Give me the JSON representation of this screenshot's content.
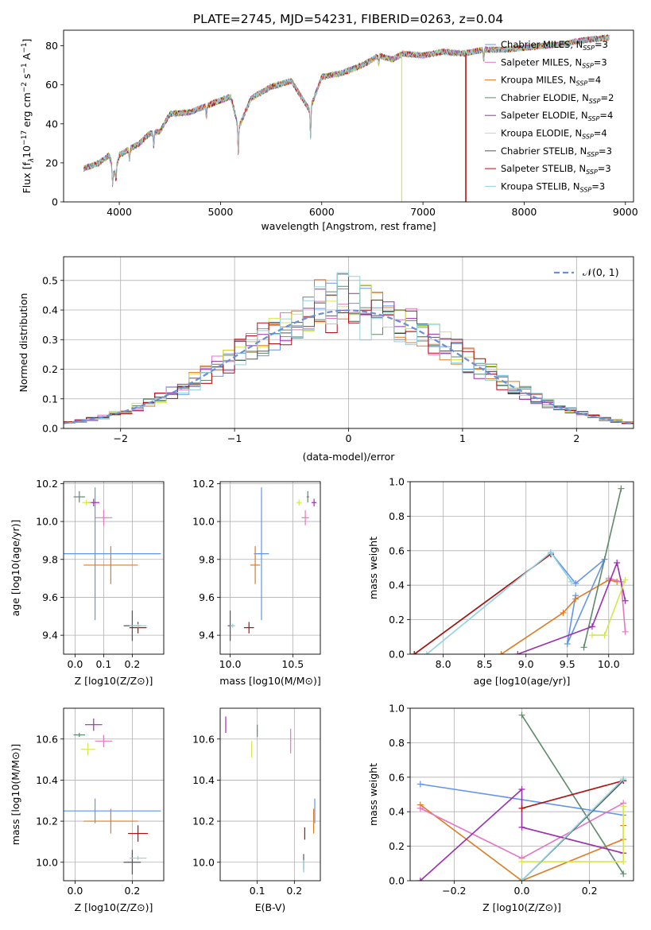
{
  "figure": {
    "title": "PLATE=2745, MJD=54231, FIBERID=0263, z=0.04"
  },
  "series_styles": [
    {
      "name": "Chabrier MILES",
      "nssp": "3",
      "color": "#6495ed"
    },
    {
      "name": "Salpeter MILES",
      "nssp": "3",
      "color": "#e377c2"
    },
    {
      "name": "Kroupa MILES",
      "nssp": "4",
      "color": "#e07b22"
    },
    {
      "name": "Chabrier ELODIE",
      "nssp": "2",
      "color": "#5e8a6a"
    },
    {
      "name": "Salpeter ELODIE",
      "nssp": "4",
      "color": "#9b2fae"
    },
    {
      "name": "Kroupa ELODIE",
      "nssp": "4",
      "color": "#d4e84a"
    },
    {
      "name": "Chabrier STELIB",
      "nssp": "3",
      "color": "#555555"
    },
    {
      "name": "Salpeter STELIB",
      "nssp": "3",
      "color": "#b01010"
    },
    {
      "name": "Kroupa STELIB",
      "nssp": "3",
      "color": "#8fd3e0"
    }
  ],
  "chart_data": [
    {
      "id": "spectrum",
      "type": "line",
      "title": "PLATE=2745, MJD=54231, FIBERID=0263, z=0.04",
      "xlabel": "wavelength [Angstrom, rest frame]",
      "ylabel": "Flux [f_λ 10^-17 erg cm^-2 s^-1 A^-1]",
      "xlim": [
        3450,
        9080
      ],
      "ylim": [
        0,
        88
      ],
      "xticks": [
        "4000",
        "5000",
        "6000",
        "7000",
        "8000",
        "9000"
      ],
      "yticks": [
        "0",
        "20",
        "40",
        "60",
        "80"
      ],
      "legend": "upper right",
      "spectrum_anchors": {
        "x": [
          3650,
          3800,
          3900,
          3950,
          4000,
          4100,
          4200,
          4300,
          4400,
          4500,
          4700,
          4900,
          5100,
          5180,
          5300,
          5500,
          5700,
          5880,
          6000,
          6200,
          6400,
          6563,
          6700,
          6800,
          7000,
          7200,
          7400,
          7600,
          7800,
          8000,
          8200,
          8400,
          8600,
          8800
        ],
        "y": [
          17,
          20,
          24,
          14,
          24,
          27,
          30,
          35,
          36,
          45,
          46,
          50,
          54,
          38,
          53,
          59,
          62,
          47,
          64,
          66,
          70,
          75,
          73,
          76,
          75,
          77,
          76,
          78,
          78,
          79,
          80,
          81,
          83,
          84
        ]
      },
      "drop_lines": [
        {
          "series": "Kroupa ELODIE",
          "x": 6790
        },
        {
          "series": "Kroupa MILES",
          "x": 7420
        },
        {
          "series": "Salpeter STELIB",
          "x": 7425
        }
      ]
    },
    {
      "id": "residuals",
      "type": "histogram",
      "xlabel": "(data-model)/error",
      "ylabel": "Normed distribution",
      "xlim": [
        -2.5,
        2.5
      ],
      "ylim": [
        0,
        0.58
      ],
      "xticks": [
        "−2",
        "−1",
        "0",
        "1",
        "2"
      ],
      "yticks": [
        "0.0",
        "0.1",
        "0.2",
        "0.3",
        "0.4",
        "0.5"
      ],
      "grid": true,
      "legend": "upper right",
      "reference_curve": {
        "name": "𝒩(0, 1)",
        "type": "normal",
        "mean": 0,
        "sigma": 1,
        "style": "dashed"
      },
      "bin_width": 0.1
    },
    {
      "id": "age-vs-Z",
      "type": "errorbar",
      "xlabel": "Z [log10(Z/Z⊙)]",
      "ylabel": "age  [log10(age/yr)]",
      "xlim": [
        -0.04,
        0.31
      ],
      "ylim": [
        9.3,
        10.21
      ],
      "xticks": [
        "0.0",
        "0.1",
        "0.2"
      ],
      "yticks": [
        "9.4",
        "9.6",
        "9.8",
        "10.0",
        "10.2"
      ],
      "points": [
        {
          "series": "Chabrier MILES",
          "x": 0.07,
          "y": 9.83,
          "xerr": 0.23,
          "yerr": 0.35
        },
        {
          "series": "Kroupa MILES",
          "x": 0.125,
          "y": 9.77,
          "xerr": 0.095,
          "yerr": 0.1
        },
        {
          "series": "Salpeter MILES",
          "x": 0.1,
          "y": 10.02,
          "xerr": 0.03,
          "yerr": 0.04
        },
        {
          "series": "Chabrier ELODIE",
          "x": 0.015,
          "y": 10.13,
          "xerr": 0.02,
          "yerr": 0.03
        },
        {
          "series": "Salpeter ELODIE",
          "x": 0.065,
          "y": 10.1,
          "xerr": 0.02,
          "yerr": 0.02
        },
        {
          "series": "Kroupa ELODIE",
          "x": 0.04,
          "y": 10.1,
          "xerr": 0.015,
          "yerr": 0.015
        },
        {
          "series": "Chabrier STELIB",
          "x": 0.2,
          "y": 9.45,
          "xerr": 0.03,
          "yerr": 0.08
        },
        {
          "series": "Salpeter STELIB",
          "x": 0.22,
          "y": 9.44,
          "xerr": 0.03,
          "yerr": 0.03
        },
        {
          "series": "Kroupa STELIB",
          "x": 0.22,
          "y": 9.45,
          "xerr": 0.03,
          "yerr": 0.01
        }
      ]
    },
    {
      "id": "age-vs-mass",
      "type": "errorbar",
      "xlabel": "mass [log10(M/M⊙)]",
      "ylabel": "",
      "xlim": [
        9.92,
        10.72
      ],
      "ylim": [
        9.3,
        10.21
      ],
      "xticks": [
        "10.0",
        "10.5"
      ],
      "yticks": [
        "9.4",
        "9.6",
        "9.8",
        "10.0",
        "10.2"
      ],
      "points": [
        {
          "series": "Chabrier MILES",
          "x": 10.25,
          "y": 9.83,
          "xerr": 0.06,
          "yerr": 0.35
        },
        {
          "series": "Kroupa MILES",
          "x": 10.2,
          "y": 9.77,
          "xerr": 0.04,
          "yerr": 0.1
        },
        {
          "series": "Salpeter MILES",
          "x": 10.6,
          "y": 10.02,
          "xerr": 0.03,
          "yerr": 0.04
        },
        {
          "series": "Chabrier ELODIE",
          "x": 10.62,
          "y": 10.13,
          "xerr": 0.01,
          "yerr": 0.03
        },
        {
          "series": "Salpeter ELODIE",
          "x": 10.67,
          "y": 10.1,
          "xerr": 0.02,
          "yerr": 0.02
        },
        {
          "series": "Kroupa ELODIE",
          "x": 10.55,
          "y": 10.1,
          "xerr": 0.02,
          "yerr": 0.015
        },
        {
          "series": "Chabrier STELIB",
          "x": 10.0,
          "y": 9.45,
          "xerr": 0.02,
          "yerr": 0.08
        },
        {
          "series": "Salpeter STELIB",
          "x": 10.15,
          "y": 9.44,
          "xerr": 0.04,
          "yerr": 0.03
        },
        {
          "series": "Kroupa STELIB",
          "x": 10.02,
          "y": 9.45,
          "xerr": 0.02,
          "yerr": 0.01
        }
      ]
    },
    {
      "id": "weight-vs-age",
      "type": "line",
      "xlabel": "age  [log10(age/yr)]",
      "ylabel": "mass weight",
      "xlim": [
        7.6,
        10.3
      ],
      "ylim": [
        0,
        1.0
      ],
      "xticks": [
        "8.0",
        "8.5",
        "9.0",
        "9.5",
        "10.0"
      ],
      "yticks": [
        "0.0",
        "0.2",
        "0.4",
        "0.6",
        "0.8",
        "1.0"
      ],
      "grid": true,
      "lines": [
        {
          "series": "Chabrier MILES",
          "x": [
            9.3,
            9.6,
            9.95,
            9.5,
            9.6
          ],
          "y": [
            0.59,
            0.41,
            0.55,
            0.06,
            0.34
          ]
        },
        {
          "series": "Kroupa MILES",
          "x": [
            8.7,
            9.45,
            9.6,
            10.0,
            10.1
          ],
          "y": [
            0.0,
            0.24,
            0.32,
            0.43,
            0.42
          ]
        },
        {
          "series": "Salpeter MILES",
          "x": [
            10.0,
            10.15,
            10.2
          ],
          "y": [
            0.44,
            0.42,
            0.13
          ]
        },
        {
          "series": "Chabrier ELODIE",
          "x": [
            9.7,
            10.15
          ],
          "y": [
            0.04,
            0.96
          ]
        },
        {
          "series": "Salpeter ELODIE",
          "x": [
            8.9,
            9.8,
            10.1,
            10.2
          ],
          "y": [
            0.0,
            0.16,
            0.53,
            0.31
          ]
        },
        {
          "series": "Kroupa ELODIE",
          "x": [
            9.8,
            9.95,
            10.2
          ],
          "y": [
            0.11,
            0.11,
            0.43
          ]
        },
        {
          "series": "Chabrier STELIB",
          "x": [
            7.65,
            9.3
          ],
          "y": [
            0.0,
            0.58
          ]
        },
        {
          "series": "Salpeter STELIB",
          "x": [
            7.65,
            9.3
          ],
          "y": [
            0.0,
            0.58
          ]
        },
        {
          "series": "Kroupa STELIB",
          "x": [
            7.8,
            9.3,
            9.55
          ],
          "y": [
            0.0,
            0.59,
            0.42
          ]
        }
      ]
    },
    {
      "id": "mass-vs-Z",
      "type": "errorbar",
      "xlabel": "Z [log10(Z/Z⊙)]",
      "ylabel": "mass [log10(M/M⊙)]",
      "xlim": [
        -0.04,
        0.31
      ],
      "ylim": [
        9.91,
        10.75
      ],
      "xticks": [
        "0.0",
        "0.2"
      ],
      "yticks": [
        "10.0",
        "10.2",
        "10.4",
        "10.6"
      ],
      "points": [
        {
          "series": "Chabrier MILES",
          "x": 0.07,
          "y": 10.25,
          "xerr": 0.23,
          "yerr": 0.06
        },
        {
          "series": "Kroupa MILES",
          "x": 0.125,
          "y": 10.2,
          "xerr": 0.095,
          "yerr": 0.06
        },
        {
          "series": "Salpeter MILES",
          "x": 0.1,
          "y": 10.59,
          "xerr": 0.03,
          "yerr": 0.03
        },
        {
          "series": "Chabrier ELODIE",
          "x": 0.015,
          "y": 10.62,
          "xerr": 0.02,
          "yerr": 0.01
        },
        {
          "series": "Salpeter ELODIE",
          "x": 0.065,
          "y": 10.67,
          "xerr": 0.03,
          "yerr": 0.03
        },
        {
          "series": "Kroupa ELODIE",
          "x": 0.045,
          "y": 10.55,
          "xerr": 0.025,
          "yerr": 0.03
        },
        {
          "series": "Chabrier STELIB",
          "x": 0.2,
          "y": 10.0,
          "xerr": 0.03,
          "yerr": 0.06
        },
        {
          "series": "Salpeter STELIB",
          "x": 0.22,
          "y": 10.14,
          "xerr": 0.035,
          "yerr": 0.04
        },
        {
          "series": "Kroupa STELIB",
          "x": 0.22,
          "y": 10.02,
          "xerr": 0.03,
          "yerr": 0.01
        }
      ]
    },
    {
      "id": "mass-vs-ebv",
      "type": "errorbar",
      "xlabel": "E(B-V)",
      "ylabel": "",
      "xlim": [
        0.0,
        0.27
      ],
      "ylim": [
        9.91,
        10.75
      ],
      "xticks": [
        "0.1",
        "0.2"
      ],
      "yticks": [
        "10.0",
        "10.2",
        "10.4",
        "10.6"
      ],
      "points": [
        {
          "series": "Chabrier MILES",
          "x": 0.255,
          "y": 10.25,
          "xerr": 0.001,
          "yerr": 0.06
        },
        {
          "series": "Kroupa MILES",
          "x": 0.252,
          "y": 10.2,
          "xerr": 0.001,
          "yerr": 0.06
        },
        {
          "series": "Salpeter MILES",
          "x": 0.19,
          "y": 10.59,
          "xerr": 0.001,
          "yerr": 0.06
        },
        {
          "series": "Chabrier ELODIE",
          "x": 0.1,
          "y": 10.64,
          "xerr": 0.001,
          "yerr": 0.03
        },
        {
          "series": "Salpeter ELODIE",
          "x": 0.015,
          "y": 10.67,
          "xerr": 0.001,
          "yerr": 0.04
        },
        {
          "series": "Kroupa ELODIE",
          "x": 0.085,
          "y": 10.55,
          "xerr": 0.001,
          "yerr": 0.04
        },
        {
          "series": "Chabrier STELIB",
          "x": 0.225,
          "y": 10.0,
          "xerr": 0.001,
          "yerr": 0.04
        },
        {
          "series": "Salpeter STELIB",
          "x": 0.228,
          "y": 10.14,
          "xerr": 0.001,
          "yerr": 0.03
        },
        {
          "series": "Kroupa STELIB",
          "x": 0.225,
          "y": 9.98,
          "xerr": 0.001,
          "yerr": 0.03
        }
      ]
    },
    {
      "id": "weight-vs-Z",
      "type": "line",
      "xlabel": "Z [log10(Z/Z⊙)]",
      "ylabel": "mass weight",
      "xlim": [
        -0.33,
        0.33
      ],
      "ylim": [
        0,
        1.0
      ],
      "xticks": [
        "−0.2",
        "0.0",
        "0.2"
      ],
      "yticks": [
        "0.0",
        "0.2",
        "0.4",
        "0.6",
        "0.8",
        "1.0"
      ],
      "grid": true,
      "lines": [
        {
          "series": "Chabrier MILES",
          "x": [
            -0.3,
            0.3
          ],
          "y": [
            0.56,
            0.38
          ]
        },
        {
          "series": "Kroupa MILES",
          "x": [
            -0.3,
            0.0,
            0.3,
            0.3
          ],
          "y": [
            0.44,
            0.0,
            0.24,
            0.32
          ]
        },
        {
          "series": "Salpeter MILES",
          "x": [
            -0.3,
            0.0,
            0.3
          ],
          "y": [
            0.42,
            0.13,
            0.45
          ]
        },
        {
          "series": "Chabrier ELODIE",
          "x": [
            0.0,
            0.3
          ],
          "y": [
            0.96,
            0.04
          ]
        },
        {
          "series": "Salpeter ELODIE",
          "x": [
            -0.3,
            0.0,
            0.0,
            0.3
          ],
          "y": [
            0.0,
            0.53,
            0.31,
            0.16
          ]
        },
        {
          "series": "Kroupa ELODIE",
          "x": [
            0.0,
            0.3,
            0.3
          ],
          "y": [
            0.11,
            0.11,
            0.43
          ]
        },
        {
          "series": "Chabrier STELIB",
          "x": [
            0.0,
            0.3
          ],
          "y": [
            0.0,
            0.58
          ]
        },
        {
          "series": "Salpeter STELIB",
          "x": [
            0.0,
            0.3
          ],
          "y": [
            0.42,
            0.58
          ]
        },
        {
          "series": "Kroupa STELIB",
          "x": [
            0.0,
            0.3
          ],
          "y": [
            0.0,
            0.59
          ]
        }
      ]
    }
  ]
}
